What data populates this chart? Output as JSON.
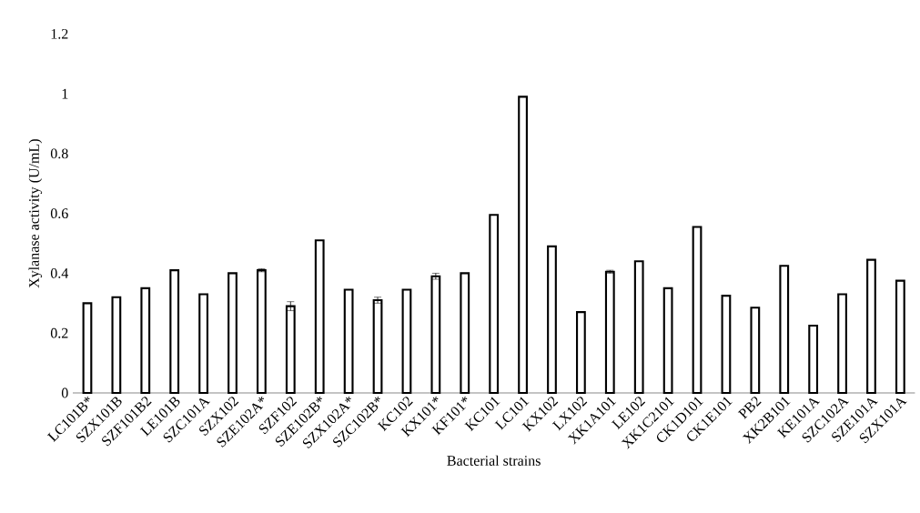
{
  "chart_data": {
    "type": "bar",
    "xlabel": "Bacterial strains",
    "ylabel": "Xylanase activity (U/mL)",
    "categories": [
      "LC101B*",
      "SZX101B",
      "SZF101B2",
      "LE101B",
      "SZC101A",
      "SZX102",
      "SZE102A*",
      "SZF102",
      "SZE102B*",
      "SZX102A*",
      "SZC102B*",
      "KC102",
      "KX101*",
      "KF101*",
      "KC101",
      "LC101",
      "KX102",
      "LX102",
      "XK1A101",
      "LE102",
      "XK1C2101",
      "CK1D101",
      "CK1E101",
      "PB2",
      "XK2B101",
      "KE101A",
      "SZC102A",
      "SZE101A",
      "SZX101A"
    ],
    "values": [
      0.3,
      0.32,
      0.35,
      0.41,
      0.33,
      0.4,
      0.41,
      0.29,
      0.51,
      0.345,
      0.31,
      0.345,
      0.39,
      0.4,
      0.595,
      0.99,
      0.49,
      0.27,
      0.405,
      0.44,
      0.35,
      0.555,
      0.325,
      0.285,
      0.425,
      0.225,
      0.33,
      0.445,
      0.375
    ],
    "errors": [
      null,
      null,
      null,
      null,
      null,
      null,
      0.005,
      0.015,
      null,
      null,
      0.01,
      null,
      0.01,
      null,
      null,
      null,
      null,
      null,
      0.005,
      null,
      null,
      null,
      null,
      null,
      null,
      null,
      null,
      null,
      null
    ],
    "color": "#ffffff",
    "ylim": [
      0,
      1.2
    ],
    "yticks": [
      0,
      0.2,
      0.4,
      0.6,
      0.8,
      1,
      1.2
    ],
    "grid": false
  }
}
